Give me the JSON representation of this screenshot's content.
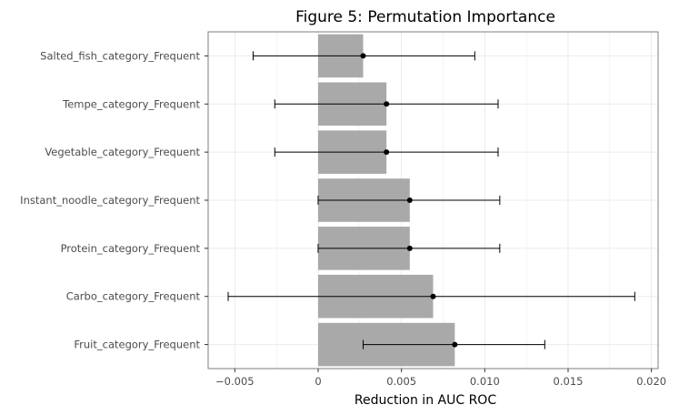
{
  "chart_data": {
    "type": "bar",
    "orientation": "horizontal",
    "title": "Figure 5: Permutation Importance",
    "xlabel": "Reduction in AUC ROC",
    "ylabel": "",
    "categories": [
      "Salted_fish_category_Frequent",
      "Tempe_category_Frequent",
      "Vegetable_category_Frequent",
      "Instant_noodle_category_Frequent",
      "Protein_category_Frequent",
      "Carbo_category_Frequent",
      "Fruit_category_Frequent"
    ],
    "values": [
      0.0027,
      0.0041,
      0.0041,
      0.0055,
      0.0055,
      0.0069,
      0.0082
    ],
    "error_low": [
      -0.0039,
      -0.0026,
      -0.0026,
      0.0,
      0.0,
      -0.0054,
      0.0027
    ],
    "error_high": [
      0.0094,
      0.0108,
      0.0108,
      0.0109,
      0.0109,
      0.019,
      0.0136
    ],
    "xlim": [
      -0.0066,
      0.0204
    ],
    "xticks": [
      -0.005,
      0,
      0.005,
      0.01,
      0.015,
      0.02
    ],
    "xtick_labels": [
      "−0.005",
      "0",
      "0.005",
      "0.010",
      "0.015",
      "0.020"
    ],
    "grid": true,
    "bar_color": "#a9a9a9",
    "point_color": "#000000",
    "panel_border_color": "#7f7f7f",
    "grid_color": "#ebebeb"
  }
}
